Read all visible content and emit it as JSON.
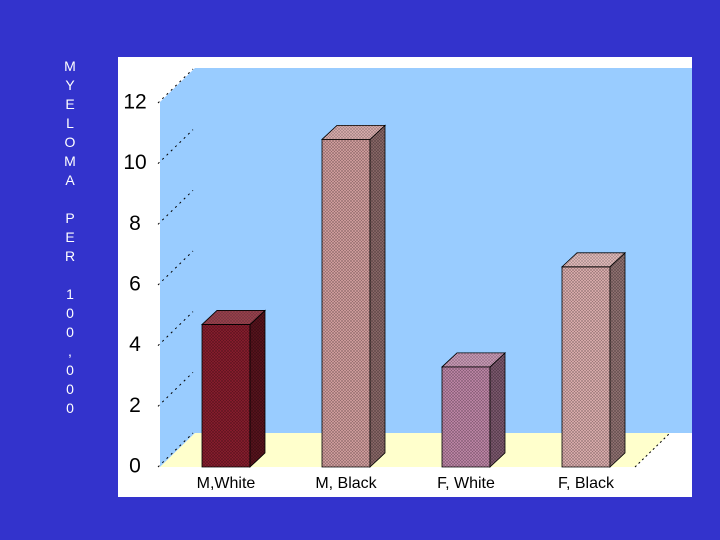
{
  "chart_data": {
    "type": "bar3d",
    "y_label": "MYELOMA PER 100,000",
    "categories": [
      "M,White",
      "M, Black",
      "F, White",
      "F, Black"
    ],
    "values": [
      4.7,
      10.8,
      3.3,
      6.6
    ],
    "colors": [
      "#8b1e2e",
      "#d9a3a3",
      "#c48aac",
      "#e3b3b3"
    ],
    "ylim": [
      0,
      12
    ],
    "yticks": [
      0,
      2,
      4,
      6,
      8,
      10,
      12
    ],
    "grid": true
  }
}
